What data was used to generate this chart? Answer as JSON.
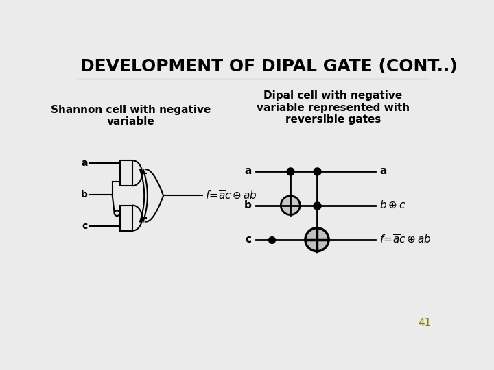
{
  "title": "DEVELOPMENT OF DIPAL GATE (CONT..)",
  "bg_color": "#ebebeb",
  "title_color": "#000000",
  "title_fontsize": 18,
  "left_subtitle": "Shannon cell with negative\nvariable",
  "right_subtitle": "Dipal cell with negative\nvariable represented with\nreversible gates",
  "page_number": "41",
  "page_num_color": "#8B7500"
}
